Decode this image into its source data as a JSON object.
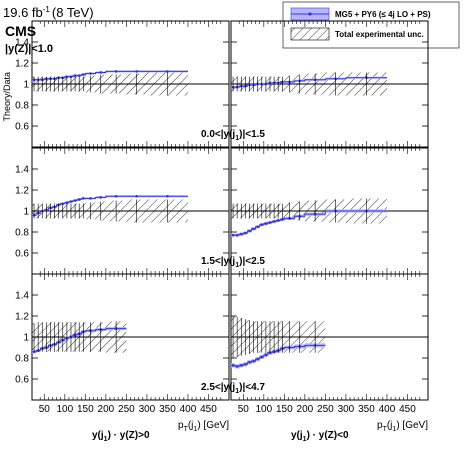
{
  "header": {
    "lumi": "19.6 fb",
    "lumi_sup": "-1",
    "energy": "(8 TeV)",
    "experiment": "CMS",
    "cut": "|y(Z)|<1.0"
  },
  "legend": {
    "mc_label": "MG5 + PY6 (≤ 4j LO + PS)",
    "band_label": "Total experimental unc."
  },
  "colors": {
    "mc": "#3535e0",
    "mc_band": "#b8b8ff",
    "hatch": "#000000"
  },
  "chart_data": {
    "type": "line",
    "ylabel": "Theory/Data",
    "xlabel": "p",
    "xlabel_sub": "T",
    "xlabel_paren": "(j",
    "xlabel_paren_sub": "1",
    "xlabel_unit": ") [GeV]",
    "xlim": [
      20,
      500
    ],
    "ylim": [
      0.4,
      1.6
    ],
    "xticks": [
      50,
      100,
      150,
      200,
      250,
      300,
      350,
      400,
      450
    ],
    "yticks": [
      0.6,
      0.8,
      1,
      1.2,
      1.4
    ],
    "columns": [
      {
        "label_y": "y(j",
        "label_sub": "1",
        "label_rest": ") · y(Z)>0"
      },
      {
        "label_y": "y(j",
        "label_sub": "1",
        "label_rest": ") · y(Z)<0"
      }
    ],
    "rows": [
      {
        "label_pre": "0.0<|y(j",
        "label_sub": "1",
        "label_post": ")|<1.5"
      },
      {
        "label_pre": "1.5<|y(j",
        "label_sub": "1",
        "label_post": ")|<2.5"
      },
      {
        "label_pre": "2.5<|y(j",
        "label_sub": "1",
        "label_post": ")|<4.7"
      }
    ],
    "panels": [
      {
        "row": 0,
        "col": 0,
        "bins": [
          20,
          30,
          40,
          50,
          60,
          70,
          80,
          90,
          100,
          110,
          120,
          130,
          140,
          150,
          175,
          200,
          250,
          300,
          400
        ],
        "mc": [
          1.04,
          1.04,
          1.04,
          1.05,
          1.05,
          1.05,
          1.06,
          1.06,
          1.07,
          1.07,
          1.08,
          1.08,
          1.09,
          1.1,
          1.11,
          1.12,
          1.12,
          1.12
        ],
        "mc_err": 0.01,
        "unc": [
          0.07,
          0.07,
          0.07,
          0.07,
          0.07,
          0.07,
          0.07,
          0.07,
          0.07,
          0.07,
          0.07,
          0.07,
          0.07,
          0.08,
          0.09,
          0.09,
          0.1,
          0.11
        ]
      },
      {
        "row": 0,
        "col": 1,
        "bins": [
          20,
          30,
          40,
          50,
          60,
          70,
          80,
          90,
          100,
          110,
          120,
          130,
          140,
          150,
          175,
          200,
          250,
          300,
          400
        ],
        "mc": [
          0.97,
          0.97,
          0.98,
          0.98,
          0.99,
          0.99,
          1.0,
          1.0,
          1.0,
          1.01,
          1.01,
          1.01,
          1.02,
          1.02,
          1.03,
          1.04,
          1.05,
          1.06
        ],
        "mc_err": 0.01,
        "unc": [
          0.07,
          0.07,
          0.07,
          0.07,
          0.07,
          0.07,
          0.07,
          0.07,
          0.07,
          0.07,
          0.07,
          0.07,
          0.07,
          0.08,
          0.09,
          0.1,
          0.11,
          0.11
        ]
      },
      {
        "row": 1,
        "col": 0,
        "bins": [
          20,
          30,
          40,
          50,
          60,
          70,
          80,
          90,
          100,
          110,
          120,
          130,
          140,
          150,
          175,
          200,
          250,
          300,
          400
        ],
        "mc": [
          0.96,
          0.98,
          1.0,
          1.01,
          1.03,
          1.04,
          1.06,
          1.07,
          1.08,
          1.09,
          1.1,
          1.11,
          1.12,
          1.12,
          1.13,
          1.14,
          1.14,
          1.14
        ],
        "mc_err": 0.01,
        "unc": [
          0.07,
          0.07,
          0.07,
          0.07,
          0.07,
          0.07,
          0.07,
          0.07,
          0.07,
          0.07,
          0.07,
          0.07,
          0.07,
          0.08,
          0.09,
          0.1,
          0.11,
          0.11
        ]
      },
      {
        "row": 1,
        "col": 1,
        "bins": [
          20,
          30,
          40,
          50,
          60,
          70,
          80,
          90,
          100,
          110,
          120,
          130,
          140,
          150,
          175,
          200,
          250,
          300,
          400
        ],
        "mc": [
          0.77,
          0.77,
          0.78,
          0.79,
          0.81,
          0.83,
          0.85,
          0.87,
          0.88,
          0.89,
          0.9,
          0.91,
          0.92,
          0.93,
          0.95,
          0.97,
          1.0,
          1.0
        ],
        "mc_err": 0.015,
        "unc": [
          0.07,
          0.07,
          0.07,
          0.07,
          0.07,
          0.07,
          0.07,
          0.07,
          0.07,
          0.07,
          0.07,
          0.07,
          0.07,
          0.08,
          0.09,
          0.1,
          0.11,
          0.12
        ]
      },
      {
        "row": 2,
        "col": 0,
        "bins": [
          20,
          30,
          40,
          50,
          60,
          70,
          80,
          90,
          100,
          110,
          120,
          130,
          140,
          150,
          175,
          200,
          250
        ],
        "mc": [
          0.86,
          0.87,
          0.89,
          0.9,
          0.92,
          0.93,
          0.95,
          0.97,
          0.99,
          1.0,
          1.02,
          1.03,
          1.05,
          1.06,
          1.07,
          1.08
        ],
        "mc_err": 0.015,
        "unc": [
          0.13,
          0.14,
          0.14,
          0.14,
          0.14,
          0.14,
          0.14,
          0.14,
          0.14,
          0.14,
          0.14,
          0.14,
          0.14,
          0.14,
          0.14,
          0.15
        ]
      },
      {
        "row": 2,
        "col": 1,
        "bins": [
          20,
          30,
          40,
          50,
          60,
          70,
          80,
          90,
          100,
          110,
          120,
          130,
          140,
          150,
          175,
          200,
          250
        ],
        "mc": [
          0.73,
          0.72,
          0.73,
          0.74,
          0.76,
          0.77,
          0.79,
          0.81,
          0.83,
          0.85,
          0.86,
          0.87,
          0.89,
          0.9,
          0.91,
          0.92
        ],
        "mc_err": 0.02,
        "unc": [
          0.2,
          0.19,
          0.18,
          0.17,
          0.16,
          0.15,
          0.15,
          0.15,
          0.15,
          0.15,
          0.15,
          0.15,
          0.15,
          0.15,
          0.15,
          0.15
        ]
      }
    ]
  }
}
